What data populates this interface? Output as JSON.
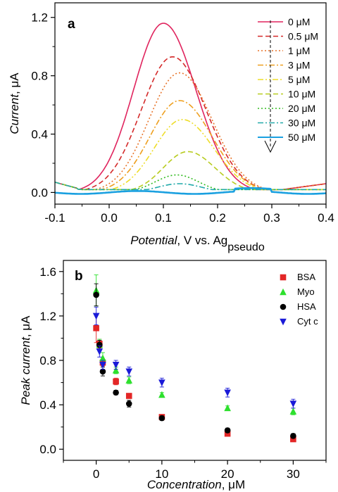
{
  "chart_data": [
    {
      "type": "line",
      "panel_label": "a",
      "xlabel": {
        "italic": "Potential",
        "rest": ", V vs. Ag",
        "sub": "pseudo"
      },
      "ylabel": {
        "italic": "Current",
        "rest": ", μA"
      },
      "xlim": [
        -0.1,
        0.4
      ],
      "ylim": [
        -0.08,
        1.3
      ],
      "xticks": [
        "-0.1",
        "0.0",
        "0.1",
        "0.2",
        "0.3",
        "0.4"
      ],
      "yticks": [
        "0.0",
        "0.4",
        "0.8",
        "1.2"
      ],
      "xtick_values": [
        -0.1,
        0.0,
        0.1,
        0.2,
        0.3,
        0.4
      ],
      "ytick_values": [
        0.0,
        0.4,
        0.8,
        1.2
      ],
      "legend_position": "top-right",
      "annotation": "dashed arrow pointing down alongside legend (increasing concentration)",
      "series": [
        {
          "name": "0 μM",
          "color": "#e0245e",
          "dash": "solid",
          "peak_x": 0.1,
          "peak_y": 1.16,
          "left_x": -0.045,
          "right_x": 0.25,
          "sigma_left": 0.055,
          "sigma_right": 0.06
        },
        {
          "name": "0.5 μM",
          "color": "#d42a2a",
          "dash": "dash",
          "peak_x": 0.117,
          "peak_y": 0.93,
          "left_x": -0.03,
          "right_x": 0.26,
          "sigma_left": 0.058,
          "sigma_right": 0.062
        },
        {
          "name": "1 μM",
          "color": "#e8742a",
          "dash": "dot",
          "peak_x": 0.13,
          "peak_y": 0.82,
          "left_x": -0.02,
          "right_x": 0.27,
          "sigma_left": 0.057,
          "sigma_right": 0.06
        },
        {
          "name": "3 μM",
          "color": "#eea020",
          "dash": "dashdot",
          "peak_x": 0.13,
          "peak_y": 0.63,
          "left_x": -0.01,
          "right_x": 0.27,
          "sigma_left": 0.055,
          "sigma_right": 0.06
        },
        {
          "name": "5 μM",
          "color": "#eedd2a",
          "dash": "dashdotdot",
          "peak_x": 0.135,
          "peak_y": 0.5,
          "left_x": 0.0,
          "right_x": 0.27,
          "sigma_left": 0.052,
          "sigma_right": 0.058
        },
        {
          "name": "10 μM",
          "color": "#b8cc20",
          "dash": "dash",
          "peak_x": 0.145,
          "peak_y": 0.28,
          "left_x": 0.03,
          "right_x": 0.26,
          "sigma_left": 0.045,
          "sigma_right": 0.05
        },
        {
          "name": "20 μM",
          "color": "#33bb22",
          "dash": "dot",
          "peak_x": 0.125,
          "peak_y": 0.12,
          "left_x": 0.04,
          "right_x": 0.22,
          "sigma_left": 0.04,
          "sigma_right": 0.04
        },
        {
          "name": "30 μM",
          "color": "#22aaaa",
          "dash": "dashdot",
          "peak_x": 0.13,
          "peak_y": 0.06,
          "left_x": 0.05,
          "right_x": 0.22,
          "sigma_left": 0.04,
          "sigma_right": 0.04
        },
        {
          "name": "50 μM",
          "color": "#1aa0e0",
          "dash": "solid",
          "peak_x": 0.0,
          "peak_y": 0.0,
          "left_x": -0.1,
          "right_x": 0.4,
          "sigma_left": 0.0,
          "sigma_right": 0.0
        }
      ]
    },
    {
      "type": "scatter",
      "panel_label": "b",
      "xlabel": {
        "italic": "Concentration",
        "rest": ", μM"
      },
      "ylabel": {
        "italic": "Peak current",
        "rest": ", μA"
      },
      "xlim": [
        -5,
        35
      ],
      "ylim": [
        -0.1,
        1.7
      ],
      "xticks": [
        "0",
        "10",
        "20",
        "30"
      ],
      "yticks": [
        "0.0",
        "0.4",
        "0.8",
        "1.2",
        "1.6"
      ],
      "xtick_values": [
        0,
        10,
        20,
        30
      ],
      "ytick_values": [
        0.0,
        0.4,
        0.8,
        1.2,
        1.6
      ],
      "legend_position": "top-right",
      "x": [
        0,
        0.5,
        1,
        3,
        5,
        10,
        20,
        30
      ],
      "series": [
        {
          "name": "BSA",
          "color": "#e32626",
          "marker": "square",
          "values": [
            1.09,
            0.95,
            0.78,
            0.61,
            0.48,
            0.29,
            0.14,
            0.09
          ],
          "errors": [
            0.13,
            0.04,
            0.03,
            0.03,
            0.02,
            0.02,
            0.02,
            0.02
          ]
        },
        {
          "name": "Myo",
          "color": "#2de02d",
          "marker": "triangle-up",
          "values": [
            1.43,
            0.94,
            0.82,
            0.71,
            0.62,
            0.49,
            0.37,
            0.34
          ],
          "errors": [
            0.14,
            0.05,
            0.05,
            0.03,
            0.03,
            0.02,
            0.02,
            0.03
          ]
        },
        {
          "name": "HSA",
          "color": "#000000",
          "marker": "circle",
          "values": [
            1.39,
            0.94,
            0.7,
            0.51,
            0.41,
            0.28,
            0.17,
            0.12
          ],
          "errors": [
            0.1,
            0.04,
            0.04,
            0.02,
            0.03,
            0.02,
            0.02,
            0.02
          ]
        },
        {
          "name": "Cyt c",
          "color": "#1a1ad8",
          "marker": "triangle-down",
          "values": [
            1.2,
            0.88,
            0.76,
            0.76,
            0.7,
            0.6,
            0.51,
            0.41
          ],
          "errors": [
            0.08,
            0.05,
            0.04,
            0.04,
            0.04,
            0.04,
            0.04,
            0.04
          ]
        }
      ]
    }
  ]
}
